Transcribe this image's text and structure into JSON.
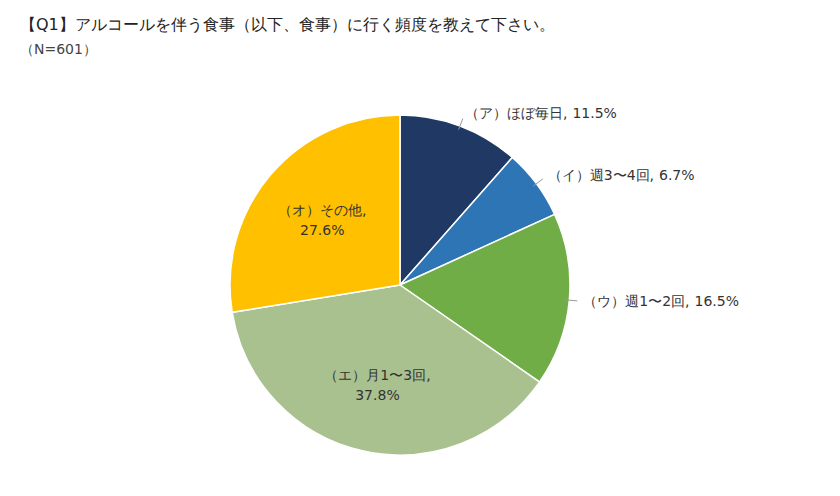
{
  "chart_data": {
    "type": "pie",
    "title": "【Q1】アルコールを伴う食事（以下、食事）に行く頻度を教えて下さい。",
    "subtitle": "（N=601）",
    "categories": [
      "（ア）ほぼ毎日,",
      "（イ）週3〜4回,",
      "（ウ）週1〜2回,",
      "（エ）月1〜3回,",
      "（オ）その他,"
    ],
    "values": [
      11.5,
      6.7,
      16.5,
      37.8,
      27.6
    ],
    "value_labels": [
      "11.5%",
      "6.7%",
      "16.5%",
      "37.8%",
      "27.6%"
    ],
    "colors": [
      "#1f3864",
      "#2e75b6",
      "#70ad47",
      "#a9c18f",
      "#ffc000"
    ],
    "data_labels": true
  }
}
